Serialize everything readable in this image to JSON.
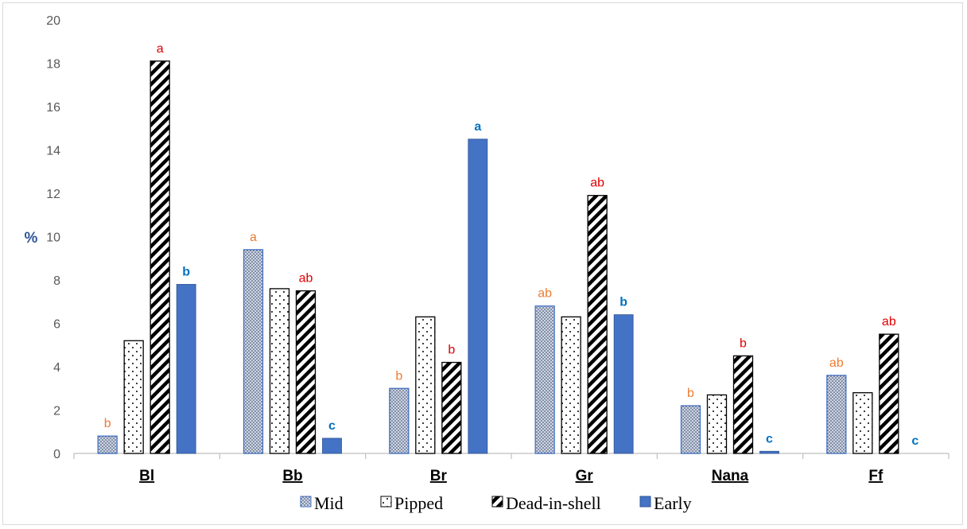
{
  "chart_data": {
    "type": "bar",
    "title": "",
    "xlabel": "",
    "ylabel": "%",
    "ylim": [
      0,
      20
    ],
    "yticks": [
      "0",
      "2",
      "4",
      "6",
      "8",
      "10",
      "12",
      "14",
      "16",
      "18",
      "20"
    ],
    "grid": false,
    "legend_position": "bottom",
    "categories": [
      "Bl",
      "Bb",
      "Br",
      "Gr",
      "Nana",
      "Ff"
    ],
    "series": [
      {
        "name": "Mid",
        "pattern": "fine-dots",
        "values": [
          0.8,
          9.4,
          3.0,
          6.8,
          2.2,
          3.6
        ],
        "letters": [
          "b",
          "a",
          "b",
          "ab",
          "b",
          "ab"
        ],
        "letter_color": "#ed7d31"
      },
      {
        "name": "Pipped",
        "pattern": "sparse-dots",
        "values": [
          5.2,
          7.6,
          6.3,
          6.3,
          2.7,
          2.8
        ],
        "letters": [
          "",
          "",
          "",
          "",
          "",
          ""
        ],
        "letter_color": "#000000"
      },
      {
        "name": "Dead-in-shell",
        "pattern": "diagonal-stripes",
        "values": [
          18.1,
          7.5,
          4.2,
          11.9,
          4.5,
          5.5
        ],
        "letters": [
          "a",
          "ab",
          "b",
          "ab",
          "b",
          "ab"
        ],
        "letter_color": "#e00000"
      },
      {
        "name": "Early",
        "pattern": "solid",
        "color": "#4472c4",
        "values": [
          7.8,
          0.7,
          14.5,
          6.4,
          0.1,
          0.0
        ],
        "letters": [
          "b",
          "c",
          "a",
          "b",
          "c",
          "c"
        ],
        "letter_color": "#0070c0"
      }
    ]
  }
}
